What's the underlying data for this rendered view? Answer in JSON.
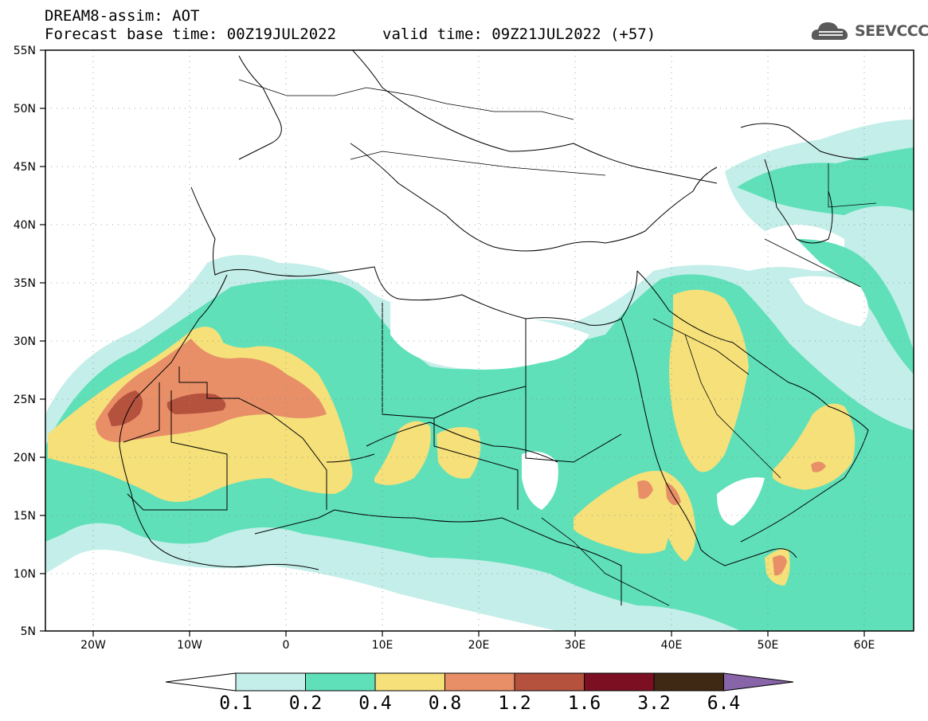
{
  "header": {
    "line1": "DREAM8-assim: AOT",
    "line2": "Forecast base time: 00Z19JUL2022",
    "line3": "valid time: 09Z21JUL2022 (+57)"
  },
  "logo": {
    "text": "SEEVCCC",
    "icon": "cloud-icon"
  },
  "map": {
    "lat_labels": [
      "55N",
      "50N",
      "45N",
      "40N",
      "35N",
      "30N",
      "25N",
      "20N",
      "15N",
      "10N",
      "5N"
    ],
    "lon_labels": [
      "20W",
      "10W",
      "0",
      "10E",
      "20E",
      "30E",
      "40E",
      "50E",
      "60E"
    ],
    "lat_range": [
      5,
      55
    ],
    "lon_range": [
      -25,
      65
    ],
    "grid": "dotted"
  },
  "colorbar": {
    "levels": [
      "0.1",
      "0.2",
      "0.4",
      "0.8",
      "1.2",
      "1.6",
      "3.2",
      "6.4"
    ],
    "colors": [
      "#c4eee9",
      "#5fe0b9",
      "#f5e07a",
      "#e88f68",
      "#b5523e",
      "#7c0f22",
      "#3f2914",
      "#8864a8"
    ],
    "under_color": "#ffffff"
  }
}
